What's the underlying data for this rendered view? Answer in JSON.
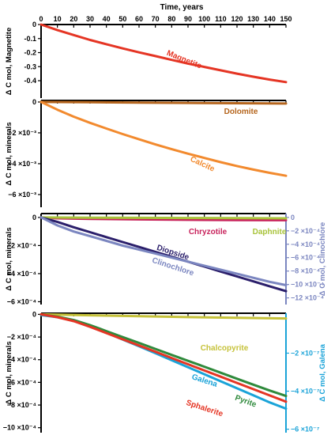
{
  "chart_data": {
    "type": "line",
    "xlabel": "Time, years",
    "xticks": [
      0,
      10,
      20,
      30,
      40,
      50,
      60,
      70,
      80,
      90,
      100,
      110,
      120,
      130,
      140,
      150
    ],
    "xlim": [
      0,
      150
    ],
    "panels": [
      {
        "id": "magnetite",
        "ylabel": "Δ C mol, Magnetite",
        "ylim": [
          -0.49,
          0
        ],
        "yticks": [
          {
            "value": 0,
            "label": "0"
          },
          {
            "value": -0.1,
            "label": "-0.1"
          },
          {
            "value": -0.2,
            "label": "-0.2"
          },
          {
            "value": -0.3,
            "label": "-0.3"
          },
          {
            "value": -0.4,
            "label": "-0.4"
          }
        ],
        "series": [
          {
            "name": "Magnetite",
            "color": "#e53524",
            "x": [
              0,
              10,
              20,
              30,
              40,
              50,
              60,
              70,
              80,
              90,
              100,
              110,
              120,
              130,
              140,
              150
            ],
            "y": [
              0,
              -0.04,
              -0.075,
              -0.11,
              -0.14,
              -0.17,
              -0.198,
              -0.225,
              -0.252,
              -0.278,
              -0.302,
              -0.326,
              -0.35,
              -0.372,
              -0.392,
              -0.41
            ]
          }
        ]
      },
      {
        "id": "carbonates",
        "ylabel": "Δ C mol, minerals",
        "ylim": [
          -0.0059,
          0.0001
        ],
        "yticks": [
          {
            "value": 0,
            "label": "0"
          },
          {
            "value": -0.002,
            "label": "−2 ×10⁻³"
          },
          {
            "value": -0.004,
            "label": "−4 ×10⁻³"
          },
          {
            "value": -0.006,
            "label": "−6 ×10⁻³"
          }
        ],
        "series": [
          {
            "name": "Dolomite",
            "color": "#b5651d",
            "x": [
              0,
              30,
              60,
              90,
              120,
              150
            ],
            "y": [
              0,
              -2e-05,
              -4e-05,
              -6e-05,
              -8e-05,
              -0.0001
            ]
          },
          {
            "name": "Calcite",
            "color": "#f28a2e",
            "x": [
              0,
              10,
              20,
              30,
              40,
              50,
              60,
              70,
              80,
              90,
              100,
              110,
              120,
              130,
              140,
              150
            ],
            "y": [
              0,
              -0.0005,
              -0.00095,
              -0.00135,
              -0.00172,
              -0.00208,
              -0.00242,
              -0.00275,
              -0.00306,
              -0.00335,
              -0.00363,
              -0.0039,
              -0.00415,
              -0.00438,
              -0.00459,
              -0.00478
            ]
          }
        ]
      },
      {
        "id": "silicates",
        "ylabel": "Δ C mol, minerals",
        "ylim": [
          -0.00062,
          5e-06
        ],
        "yticks": [
          {
            "value": 0,
            "label": "0"
          },
          {
            "value": -0.0002,
            "label": "−2 ×10⁻⁴"
          },
          {
            "value": -0.0004,
            "label": "−4 ×10⁻⁴"
          },
          {
            "value": -0.0006,
            "label": "−6 ×10⁻⁴"
          }
        ],
        "y2label": "Δ C mol, Clinochlore",
        "y2lim": [
          -0.00124,
          1e-05
        ],
        "y2ticks": [
          {
            "value": 0,
            "label": "0"
          },
          {
            "value": -0.0002,
            "label": "−2 ×10⁻⁴"
          },
          {
            "value": -0.0004,
            "label": "−4 ×10⁻⁴"
          },
          {
            "value": -0.0006,
            "label": "−6 ×10⁻⁴"
          },
          {
            "value": -0.0008,
            "label": "−8 ×10⁻⁴"
          },
          {
            "value": -0.001,
            "label": "−10 ×10⁻⁴"
          },
          {
            "value": -0.0012,
            "label": "−12 ×10⁻⁴"
          }
        ],
        "series": [
          {
            "name": "Chryzotile",
            "color": "#c8235c",
            "axis": "left",
            "x": [
              0,
              10,
              30,
              60,
              90,
              120,
              150
            ],
            "y": [
              0,
              -6e-06,
              -1e-05,
              -1.4e-05,
              -1.7e-05,
              -1.9e-05,
              -2e-05
            ]
          },
          {
            "name": "Daphnite",
            "color": "#a8c33a",
            "axis": "left",
            "x": [
              0,
              30,
              60,
              90,
              120,
              150
            ],
            "y": [
              0,
              -2e-06,
              -3e-06,
              -4e-06,
              -5e-06,
              -6e-06
            ]
          },
          {
            "name": "Diopside",
            "color": "#2b1f6b",
            "axis": "left",
            "x": [
              0,
              10,
              20,
              30,
              40,
              50,
              60,
              70,
              80,
              90,
              100,
              110,
              120,
              130,
              140,
              150
            ],
            "y": [
              0,
              -3.2e-05,
              -7e-05,
              -0.000105,
              -0.00014,
              -0.000175,
              -0.00021,
              -0.000245,
              -0.00028,
              -0.000315,
              -0.00035,
              -0.000385,
              -0.00042,
              -0.000455,
              -0.00049,
              -0.000525
            ]
          },
          {
            "name": "Clinochlore",
            "color": "#7b86c0",
            "axis": "right",
            "x": [
              0,
              10,
              20,
              30,
              40,
              50,
              60,
              70,
              80,
              90,
              100,
              110,
              120,
              130,
              140,
              150
            ],
            "y": [
              0,
              -0.00012,
              -0.00021,
              -0.00028,
              -0.00035,
              -0.00042,
              -0.00048,
              -0.00054,
              -0.0006,
              -0.00066,
              -0.00072,
              -0.00078,
              -0.00084,
              -0.0009,
              -0.00096,
              -0.00101
            ]
          }
        ]
      },
      {
        "id": "sulfides",
        "ylabel": "Δ C mol, minerals",
        "ylim": [
          -0.00103,
          1e-05
        ],
        "yticks": [
          {
            "value": 0,
            "label": "0"
          },
          {
            "value": -0.0002,
            "label": "−2 ×10⁻⁴"
          },
          {
            "value": -0.0004,
            "label": "−4 ×10⁻⁴"
          },
          {
            "value": -0.0006,
            "label": "−6 ×10⁻⁴"
          },
          {
            "value": -0.0008,
            "label": "−8 ×10⁻⁴"
          },
          {
            "value": -0.001,
            "label": "−10 ×10⁻⁴"
          }
        ],
        "y2label": "Δ C mol, Galena",
        "y2lim": [
          -6.1e-07,
          1e-08
        ],
        "y2ticks": [
          {
            "value": -2e-07,
            "label": "−2 ×10⁻⁷"
          },
          {
            "value": -4e-07,
            "label": "−4 ×10⁻⁷"
          },
          {
            "value": -6e-07,
            "label": "−6 ×10⁻⁷"
          }
        ],
        "series": [
          {
            "name": "Chalcopyrite",
            "color": "#c6c23a",
            "axis": "left",
            "x": [
              0,
              30,
              60,
              90,
              120,
              150
            ],
            "y": [
              0,
              -8e-06,
              -1.6e-05,
              -2.4e-05,
              -3e-05,
              -3.6e-05
            ]
          },
          {
            "name": "Galena",
            "color": "#1aa3d8",
            "axis": "right",
            "x": [
              0,
              10,
              20,
              30,
              40,
              50,
              60,
              70,
              80,
              90,
              100,
              110,
              120,
              130,
              140,
              150
            ],
            "y": [
              0,
              -1.1e-08,
              -2.8e-08,
              -5.8e-08,
              -9.2e-08,
              -1.28e-07,
              -1.64e-07,
              -2e-07,
              -2.37e-07,
              -2.74e-07,
              -3.11e-07,
              -3.48e-07,
              -3.85e-07,
              -4.22e-07,
              -4.59e-07,
              -4.92e-07
            ]
          },
          {
            "name": "Pyrite",
            "color": "#2f8a3c",
            "axis": "left",
            "x": [
              0,
              10,
              20,
              30,
              40,
              50,
              60,
              70,
              80,
              90,
              100,
              110,
              120,
              130,
              140,
              150
            ],
            "y": [
              0,
              -2e-05,
              -5e-05,
              -9.5e-05,
              -0.000148,
              -0.0002,
              -0.000252,
              -0.000305,
              -0.000358,
              -0.00041,
              -0.000462,
              -0.000515,
              -0.000568,
              -0.00062,
              -0.000672,
              -0.00072
            ]
          },
          {
            "name": "Sphalerite",
            "color": "#e53524",
            "axis": "left",
            "x": [
              0,
              10,
              20,
              30,
              40,
              50,
              60,
              70,
              80,
              90,
              100,
              110,
              120,
              130,
              140,
              150
            ],
            "y": [
              0,
              -2.5e-05,
              -6e-05,
              -0.00011,
              -0.000165,
              -0.00022,
              -0.000275,
              -0.00033,
              -0.000385,
              -0.00044,
              -0.000495,
              -0.00055,
              -0.000605,
              -0.00066,
              -0.000715,
              -0.00077
            ]
          }
        ]
      }
    ]
  }
}
